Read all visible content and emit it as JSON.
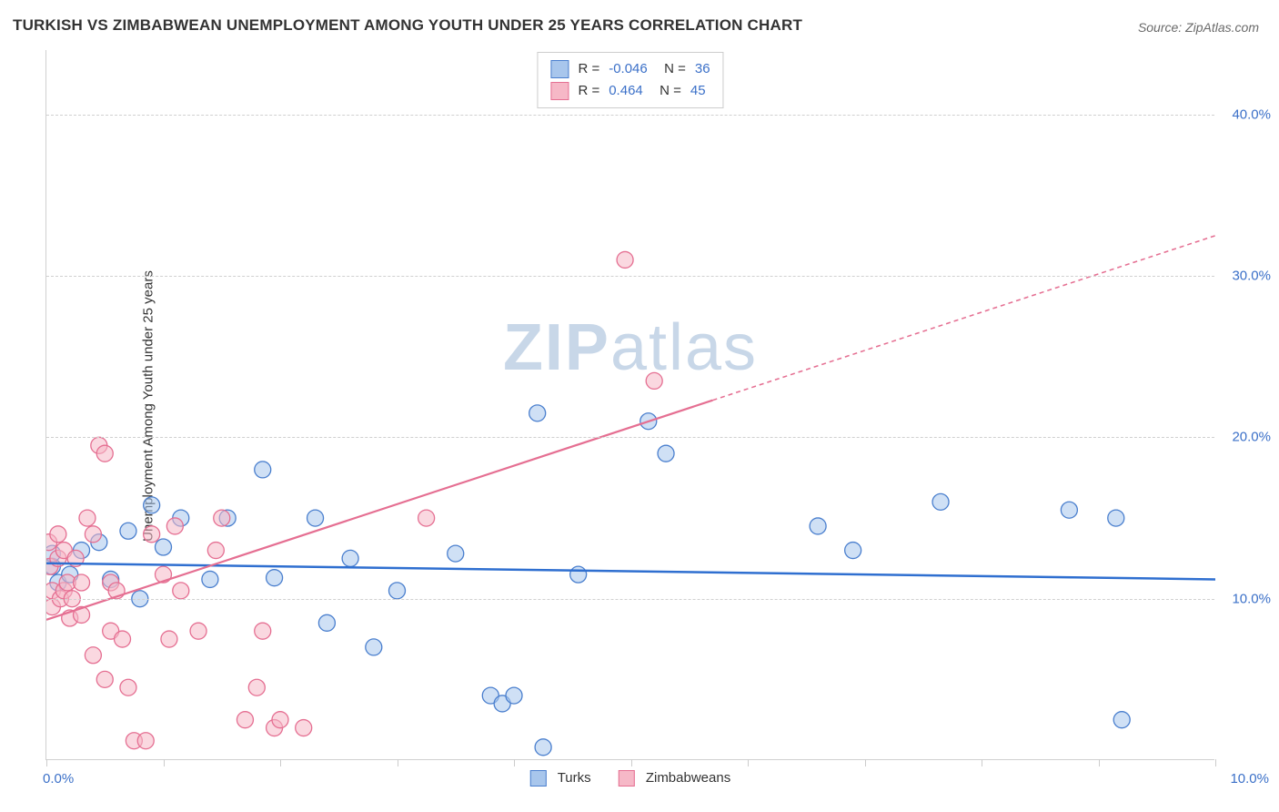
{
  "title": "TURKISH VS ZIMBABWEAN UNEMPLOYMENT AMONG YOUTH UNDER 25 YEARS CORRELATION CHART",
  "source": "Source: ZipAtlas.com",
  "y_axis_title": "Unemployment Among Youth under 25 years",
  "watermark": "ZIPatlas",
  "chart": {
    "type": "scatter",
    "xlim": [
      0.0,
      10.0
    ],
    "ylim": [
      0.0,
      44.0
    ],
    "x_ticks": [
      0,
      1,
      2,
      3,
      4,
      5,
      6,
      7,
      8,
      9,
      10
    ],
    "x_tick_labels": {
      "0": "0.0%",
      "10": "10.0%"
    },
    "y_ticks": [
      10,
      20,
      30,
      40
    ],
    "y_tick_labels": {
      "10": "10.0%",
      "20": "20.0%",
      "30": "30.0%",
      "40": "40.0%"
    },
    "grid_color": "#d0d0d0",
    "background_color": "#ffffff",
    "marker_radius": 9,
    "marker_stroke_width": 1.3,
    "series": [
      {
        "name": "Turks",
        "fill": "#a8c6ec",
        "fill_opacity": 0.55,
        "stroke": "#4a7fce",
        "points": [
          [
            0.05,
            12.0
          ],
          [
            0.05,
            12.8
          ],
          [
            0.1,
            11.0
          ],
          [
            0.2,
            11.5
          ],
          [
            0.3,
            13.0
          ],
          [
            0.45,
            13.5
          ],
          [
            0.55,
            11.2
          ],
          [
            0.7,
            14.2
          ],
          [
            0.9,
            15.8
          ],
          [
            1.0,
            13.2
          ],
          [
            1.15,
            15.0
          ],
          [
            1.4,
            11.2
          ],
          [
            1.55,
            15.0
          ],
          [
            1.85,
            18.0
          ],
          [
            1.95,
            11.3
          ],
          [
            2.3,
            15.0
          ],
          [
            2.4,
            8.5
          ],
          [
            2.6,
            12.5
          ],
          [
            2.8,
            7.0
          ],
          [
            3.0,
            10.5
          ],
          [
            3.5,
            12.8
          ],
          [
            3.8,
            4.0
          ],
          [
            3.9,
            3.5
          ],
          [
            4.0,
            4.0
          ],
          [
            4.2,
            21.5
          ],
          [
            4.25,
            0.8
          ],
          [
            4.55,
            11.5
          ],
          [
            5.15,
            21.0
          ],
          [
            5.3,
            19.0
          ],
          [
            6.6,
            14.5
          ],
          [
            6.9,
            13.0
          ],
          [
            7.65,
            16.0
          ],
          [
            8.75,
            15.5
          ],
          [
            9.15,
            15.0
          ],
          [
            9.2,
            2.5
          ],
          [
            0.8,
            10.0
          ]
        ],
        "regression": {
          "x1": 0,
          "y1": 12.2,
          "x2": 10,
          "y2": 11.2,
          "color": "#2f6fd0",
          "width": 2.5,
          "dash": "none"
        },
        "stats": {
          "R": "-0.046",
          "N": "36"
        }
      },
      {
        "name": "Zimbabweans",
        "fill": "#f6b8c7",
        "fill_opacity": 0.55,
        "stroke": "#e56f92",
        "points": [
          [
            0.02,
            13.5
          ],
          [
            0.03,
            12.0
          ],
          [
            0.05,
            10.5
          ],
          [
            0.05,
            9.5
          ],
          [
            0.1,
            14.0
          ],
          [
            0.1,
            12.5
          ],
          [
            0.12,
            10.0
          ],
          [
            0.15,
            13.0
          ],
          [
            0.15,
            10.5
          ],
          [
            0.18,
            11.0
          ],
          [
            0.2,
            8.8
          ],
          [
            0.22,
            10.0
          ],
          [
            0.25,
            12.5
          ],
          [
            0.3,
            11.0
          ],
          [
            0.3,
            9.0
          ],
          [
            0.35,
            15.0
          ],
          [
            0.4,
            14.0
          ],
          [
            0.4,
            6.5
          ],
          [
            0.45,
            19.5
          ],
          [
            0.5,
            19.0
          ],
          [
            0.5,
            5.0
          ],
          [
            0.55,
            11.0
          ],
          [
            0.55,
            8.0
          ],
          [
            0.6,
            10.5
          ],
          [
            0.65,
            7.5
          ],
          [
            0.7,
            4.5
          ],
          [
            0.75,
            1.2
          ],
          [
            0.85,
            1.2
          ],
          [
            0.9,
            14.0
          ],
          [
            1.0,
            11.5
          ],
          [
            1.1,
            14.5
          ],
          [
            1.15,
            10.5
          ],
          [
            1.3,
            8.0
          ],
          [
            1.45,
            13.0
          ],
          [
            1.5,
            15.0
          ],
          [
            1.7,
            2.5
          ],
          [
            1.8,
            4.5
          ],
          [
            1.85,
            8.0
          ],
          [
            1.95,
            2.0
          ],
          [
            2.0,
            2.5
          ],
          [
            2.2,
            2.0
          ],
          [
            3.25,
            15.0
          ],
          [
            4.95,
            31.0
          ],
          [
            5.2,
            23.5
          ],
          [
            1.05,
            7.5
          ]
        ],
        "regression": {
          "x1": 0,
          "y1": 8.7,
          "x2": 5.7,
          "y2": 22.3,
          "color": "#e56f92",
          "width": 2.2,
          "dash": "none",
          "extrap_x2": 10,
          "extrap_y2": 32.5,
          "extrap_dash": "5,4"
        },
        "stats": {
          "R": "0.464",
          "N": "45"
        }
      }
    ],
    "legend_bottom": [
      {
        "label": "Turks",
        "fill": "#a8c6ec",
        "stroke": "#4a7fce"
      },
      {
        "label": "Zimbabweans",
        "fill": "#f6b8c7",
        "stroke": "#e56f92"
      }
    ]
  }
}
